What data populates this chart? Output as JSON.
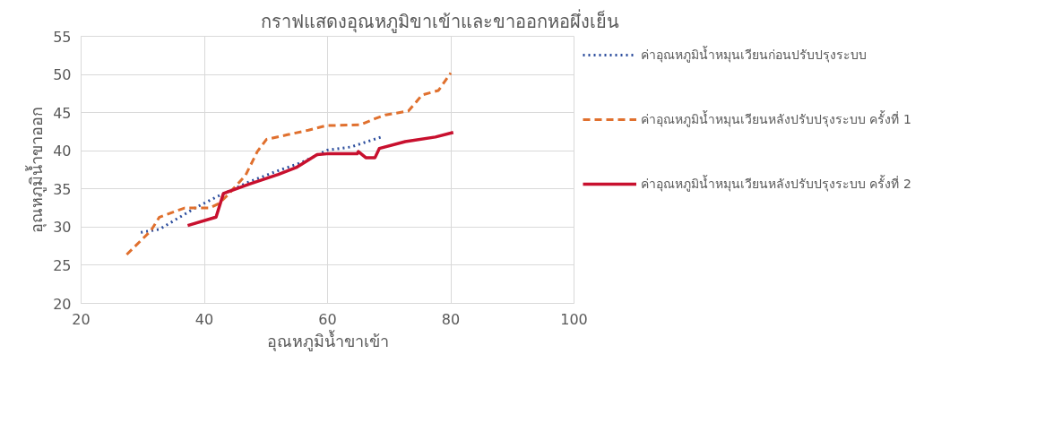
{
  "chart_data": {
    "type": "line",
    "title": "กราฟแสดงอุณหภูมิขาเข้าและขาออกหอผึ่งเย็น",
    "xlabel": "อุณหภูมิน้ำขาเข้า",
    "ylabel": "อุณหภูมิน้ำขาออก",
    "xlim": [
      20,
      100
    ],
    "xticks": [
      20,
      40,
      60,
      80,
      100
    ],
    "ylim": [
      20,
      55
    ],
    "yticks": [
      20,
      25,
      30,
      35,
      40,
      45,
      50,
      55
    ],
    "grid": true,
    "legend": "right",
    "marker": "none",
    "series": [
      {
        "name": "ค่าอุณหภูมิน้ำหมุนเวียนก่อนปรับปรุงระบบ",
        "color": "#2e4f9e",
        "line_style": "dotted",
        "x": [
          29.7,
          32.7,
          38.5,
          42.1,
          47.2,
          52.0,
          55.9,
          60.0,
          63.8,
          68.7
        ],
        "values": [
          29.3,
          29.7,
          32.5,
          34.0,
          35.9,
          37.4,
          38.5,
          40.1,
          40.5,
          41.8
        ]
      },
      {
        "name": "ค่าอุณหภูมิน้ำหมุนเวียนหลังปรับปรุงระบบ ครั้งที่ 1",
        "color": "#e0702e",
        "line_style": "dashed",
        "x": [
          27.4,
          31.3,
          32.7,
          36.8,
          40.9,
          42.4,
          43.8,
          46.7,
          48.6,
          50.1,
          53.5,
          56.9,
          59.8,
          65.3,
          67.7,
          69.4,
          73.1,
          74.3,
          75.3,
          78.0,
          80.0
        ],
        "values": [
          26.4,
          29.5,
          31.3,
          32.5,
          32.5,
          33.1,
          34.2,
          36.8,
          39.9,
          41.5,
          42.1,
          42.7,
          43.3,
          43.4,
          44.2,
          44.7,
          45.2,
          46.3,
          47.3,
          47.9,
          50.2
        ]
      },
      {
        "name": "ค่าอุณหภูมิน้ำหมุนเวียนหลังปรับปรุงระบบ ครั้งที่ 2",
        "color": "#c8102e",
        "line_style": "solid",
        "x": [
          37.3,
          41.9,
          43.1,
          47.2,
          52.0,
          54.9,
          58.3,
          59.9,
          64.8,
          65.0,
          66.2,
          67.7,
          68.4,
          72.6,
          77.5,
          80.4
        ],
        "values": [
          30.2,
          31.3,
          34.4,
          35.6,
          36.9,
          37.8,
          39.5,
          39.6,
          39.6,
          39.9,
          39.1,
          39.1,
          40.3,
          41.2,
          41.8,
          42.4
        ]
      }
    ]
  }
}
